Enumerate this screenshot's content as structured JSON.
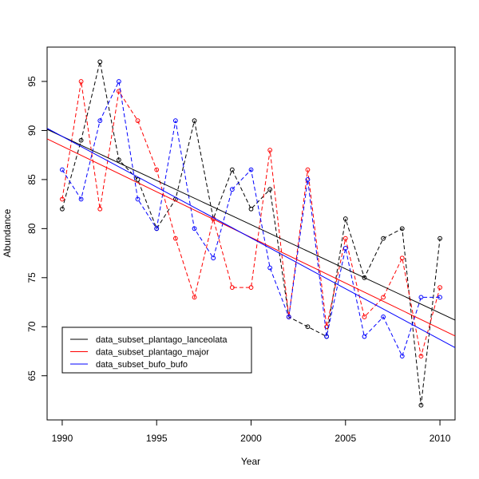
{
  "chart_data": {
    "type": "line",
    "title": "",
    "xlabel": "Year",
    "ylabel": "Abundance",
    "xlim": [
      1989.2,
      2010.8
    ],
    "ylim": [
      60.5,
      98.5
    ],
    "xticks": [
      1990,
      1995,
      2000,
      2005,
      2010
    ],
    "yticks": [
      65,
      70,
      75,
      80,
      85,
      90,
      95
    ],
    "grid": false,
    "legend_position": "bottom-left",
    "x": [
      1990,
      1991,
      1992,
      1993,
      1994,
      1995,
      1996,
      1997,
      1998,
      1999,
      2000,
      2001,
      2002,
      2003,
      2004,
      2005,
      2006,
      2007,
      2008,
      2009,
      2010
    ],
    "series": [
      {
        "name": "data_subset_plantago_lanceolata",
        "color": "#000000",
        "values": [
          82,
          89,
          97,
          87,
          85,
          80,
          83,
          91,
          81,
          86,
          82,
          84,
          71,
          70,
          69,
          81,
          75,
          79,
          80,
          62,
          79
        ],
        "trend": [
          89.4,
          71.4
        ]
      },
      {
        "name": "data_subset_plantago_major",
        "color": "#ff0000",
        "values": [
          83,
          95,
          82,
          94,
          91,
          86,
          79,
          73,
          81,
          74,
          74,
          88,
          71,
          86,
          70,
          79,
          71,
          73,
          77,
          67,
          74
        ],
        "trend": [
          88.4,
          69.8
        ]
      },
      {
        "name": "data_subset_bufo_bufo",
        "color": "#0000ff",
        "values": [
          86,
          83,
          91,
          95,
          83,
          80,
          91,
          80,
          77,
          84,
          86,
          76,
          71,
          85,
          69,
          78,
          69,
          71,
          67,
          73,
          73
        ],
        "trend": [
          89.4,
          68.7
        ]
      }
    ]
  }
}
